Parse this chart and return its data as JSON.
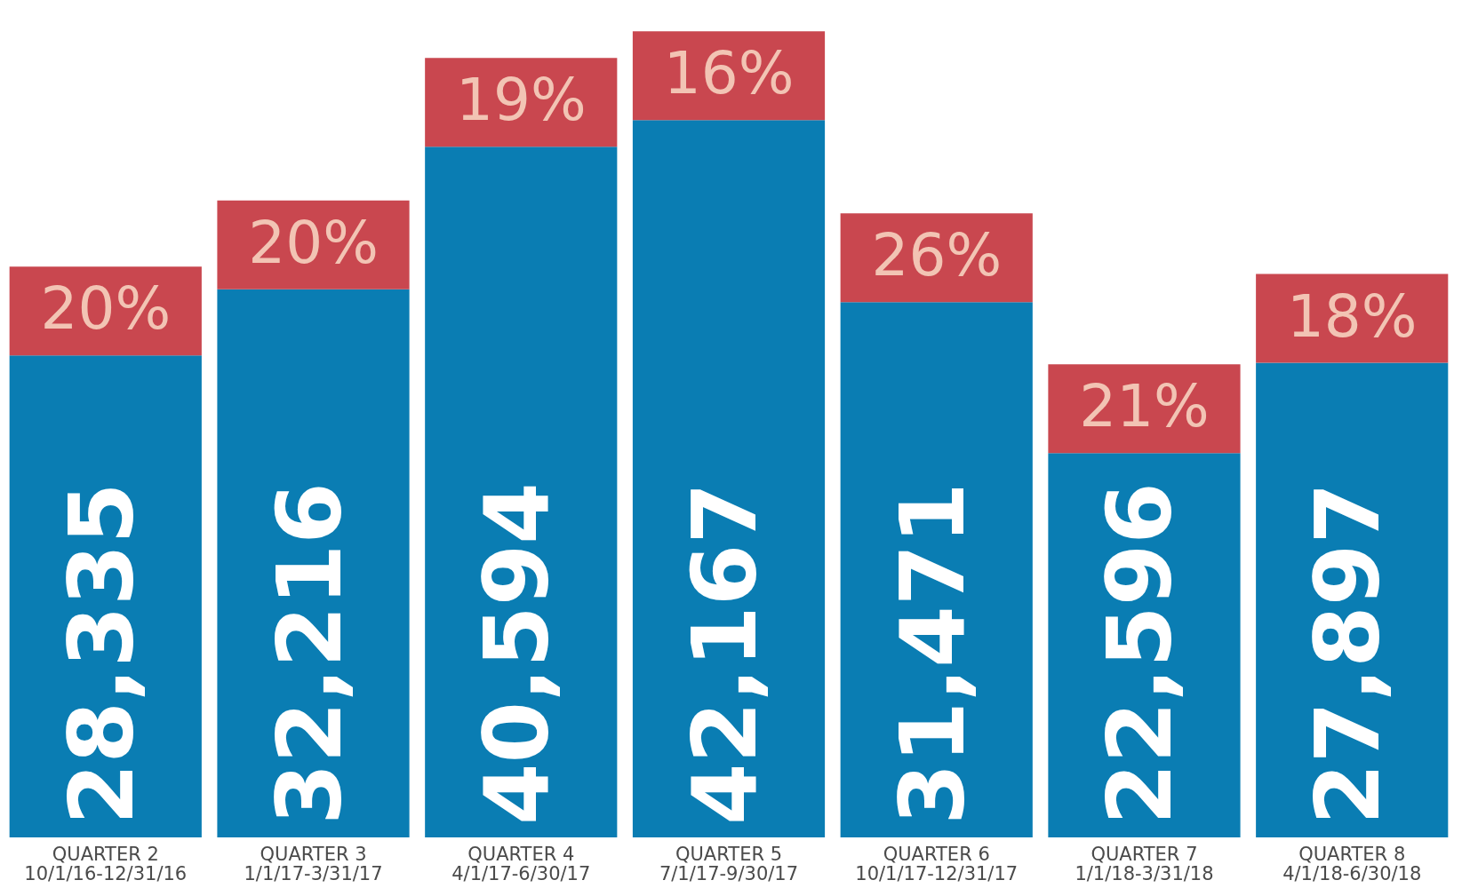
{
  "chart_data": {
    "type": "bar",
    "categories": [
      "QUARTER 2\n10/1/16-12/31/16",
      "QUARTER 3\n1/1/17-3/31/17",
      "QUARTER 4\n4/1/17-6/30/17",
      "QUARTER 5\n7/1/17-9/30/17",
      "QUARTER 6\n10/1/17-12/31/17",
      "QUARTER 7\n1/1/18-3/31/18",
      "QUARTER 8\n4/1/18-6/30/18"
    ],
    "series": [
      {
        "color": "#0a7db3",
        "values": [
          28335,
          32216,
          40594,
          42167,
          31471,
          22596,
          27897
        ],
        "value_labels": [
          "28,335",
          "32,216",
          "40,594",
          "42,167",
          "31,471",
          "22,596",
          "27,897"
        ]
      }
    ],
    "annotations": [
      {
        "text": "20%",
        "x": "QUARTER 2\n10/1/16-12/31/16",
        "y": 28335
      },
      {
        "text": "20%",
        "x": "QUARTER 3\n1/1/17-3/31/17",
        "y": 32216
      },
      {
        "text": "19%",
        "x": "QUARTER 4\n4/1/17-6/30/17",
        "y": 40594
      },
      {
        "text": "16%",
        "x": "QUARTER 5\n7/1/17-9/30/17",
        "y": 42167
      },
      {
        "text": "26%",
        "x": "QUARTER 6\n10/1/17-12/31/17",
        "y": 31471
      },
      {
        "text": "21%",
        "x": "QUARTER 7\n1/1/18-3/31/18",
        "y": 22596
      },
      {
        "text": "18%",
        "x": "QUARTER 8\n4/1/18-6/30/18",
        "y": 27897
      }
    ]
  }
}
